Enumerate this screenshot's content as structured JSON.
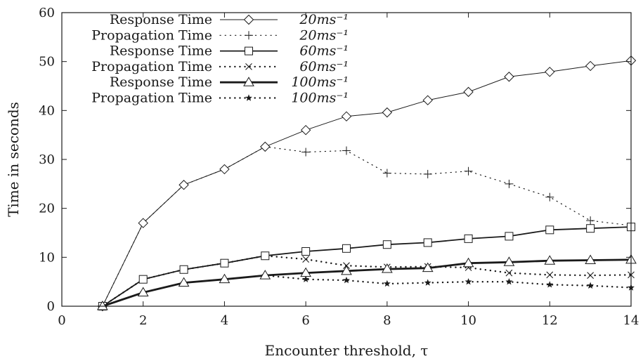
{
  "chart_data": {
    "type": "line",
    "title": "",
    "xlabel": "Encounter threshold, τ",
    "ylabel": "Time in seconds",
    "xlim": [
      0,
      14
    ],
    "ylim": [
      0,
      60
    ],
    "xticks": [
      0,
      2,
      4,
      6,
      8,
      10,
      12,
      14
    ],
    "yticks": [
      0,
      10,
      20,
      30,
      40,
      50,
      60
    ],
    "grid": false,
    "legend_position": "top-left",
    "series": [
      {
        "name": "Response Time",
        "speed_label": "20ms⁻¹",
        "marker": "diamond",
        "line": "solid-thin",
        "x": [
          1,
          2,
          3,
          4,
          5,
          6,
          7,
          8,
          9,
          10,
          11,
          12,
          13,
          14
        ],
        "y": [
          0,
          17,
          24.8,
          28,
          32.6,
          36,
          38.8,
          39.6,
          42.1,
          43.8,
          46.9,
          47.9,
          49.1,
          50.2
        ]
      },
      {
        "name": "Propagation Time",
        "speed_label": "20ms⁻¹",
        "marker": "plus",
        "line": "dotted-sparse",
        "x": [
          1,
          2,
          3,
          4,
          5,
          6,
          7,
          8,
          9,
          10,
          11,
          12,
          13,
          14
        ],
        "y": [
          0,
          17,
          24.8,
          28,
          32.6,
          31.5,
          31.8,
          27.2,
          27,
          27.6,
          25,
          22.3,
          17.5,
          16.5
        ]
      },
      {
        "name": "Response Time",
        "speed_label": "60ms⁻¹",
        "marker": "square",
        "line": "solid-medium",
        "x": [
          1,
          2,
          3,
          4,
          5,
          6,
          7,
          8,
          9,
          10,
          11,
          12,
          13,
          14
        ],
        "y": [
          0,
          5.5,
          7.5,
          8.8,
          10.3,
          11.2,
          11.8,
          12.6,
          13,
          13.8,
          14.3,
          15.6,
          15.9,
          16.2
        ]
      },
      {
        "name": "Propagation Time",
        "speed_label": "60ms⁻¹",
        "marker": "cross",
        "line": "dotted-dense",
        "x": [
          1,
          2,
          3,
          4,
          5,
          6,
          7,
          8,
          9,
          10,
          11,
          12,
          13,
          14
        ],
        "y": [
          0,
          5.5,
          7.5,
          8.8,
          10.3,
          9.6,
          8.3,
          8,
          8.1,
          7.9,
          6.8,
          6.4,
          6.3,
          6.4
        ]
      },
      {
        "name": "Response Time",
        "speed_label": "100ms⁻¹",
        "marker": "triangle",
        "line": "solid-thick",
        "x": [
          1,
          2,
          3,
          4,
          5,
          6,
          7,
          8,
          9,
          10,
          11,
          12,
          13,
          14
        ],
        "y": [
          0,
          2.8,
          4.8,
          5.5,
          6.3,
          6.8,
          7.2,
          7.6,
          7.8,
          8.8,
          9,
          9.3,
          9.4,
          9.5
        ]
      },
      {
        "name": "Propagation Time",
        "speed_label": "100ms⁻¹",
        "marker": "star",
        "line": "dotted-dense",
        "x": [
          1,
          2,
          3,
          4,
          5,
          6,
          7,
          8,
          9,
          10,
          11,
          12,
          13,
          14
        ],
        "y": [
          0,
          2.8,
          4.8,
          5.5,
          6.3,
          5.5,
          5.3,
          4.6,
          4.8,
          5,
          5,
          4.4,
          4.2,
          3.8
        ]
      }
    ]
  }
}
